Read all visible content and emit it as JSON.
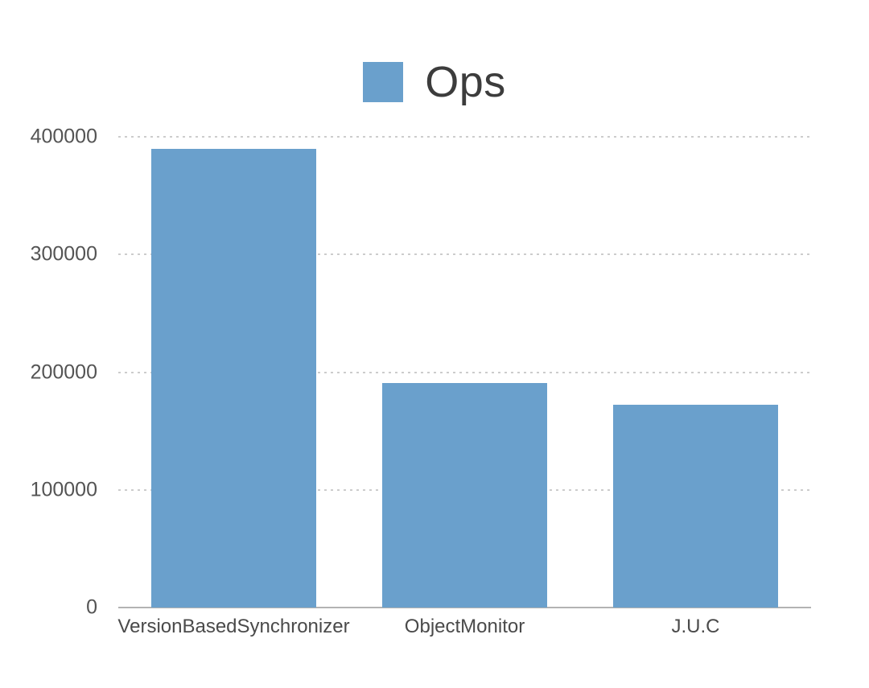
{
  "legend": {
    "label": "Ops"
  },
  "chart_data": {
    "type": "bar",
    "title": "",
    "xlabel": "",
    "ylabel": "",
    "categories": [
      "VersionBasedSynchronizer",
      "ObjectMonitor",
      "J.U.C"
    ],
    "series": [
      {
        "name": "Ops",
        "values": [
          390000,
          191000,
          172000
        ]
      }
    ],
    "ylim": [
      0,
      400000
    ],
    "yticks": [
      0,
      100000,
      200000,
      300000,
      400000
    ],
    "grid": "horizontal-dotted",
    "legend_position": "top-center"
  },
  "colors": {
    "bar": "#6aa0cc",
    "axis_line": "#b3b3b3",
    "gridline": "#cccccc",
    "tick_label": "#545454",
    "category_label": "#4a4a4a",
    "legend_text": "#3c3c3c",
    "background": "#ffffff"
  }
}
